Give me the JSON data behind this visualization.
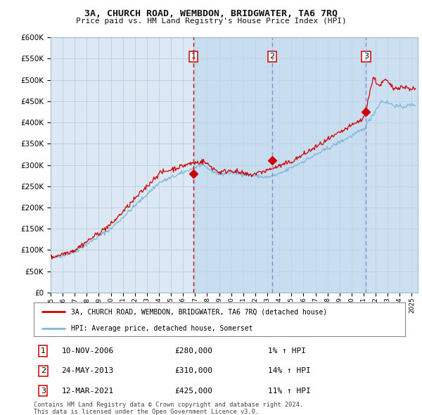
{
  "title": "3A, CHURCH ROAD, WEMBDON, BRIDGWATER, TA6 7RQ",
  "subtitle": "Price paid vs. HM Land Registry's House Price Index (HPI)",
  "hpi_label": "HPI: Average price, detached house, Somerset",
  "property_label": "3A, CHURCH ROAD, WEMBDON, BRIDGWATER, TA6 7RQ (detached house)",
  "footer1": "Contains HM Land Registry data © Crown copyright and database right 2024.",
  "footer2": "This data is licensed under the Open Government Licence v3.0.",
  "sales": [
    {
      "num": 1,
      "date": "10-NOV-2006",
      "price": 280000,
      "hpi_pct": "1%",
      "x_year": 2006.87
    },
    {
      "num": 2,
      "date": "24-MAY-2013",
      "price": 310000,
      "hpi_pct": "14%",
      "x_year": 2013.4
    },
    {
      "num": 3,
      "date": "12-MAR-2021",
      "price": 425000,
      "hpi_pct": "11%",
      "x_year": 2021.2
    }
  ],
  "ylim": [
    0,
    600000
  ],
  "yticks": [
    0,
    50000,
    100000,
    150000,
    200000,
    250000,
    300000,
    350000,
    400000,
    450000,
    500000,
    550000,
    600000
  ],
  "xlim_start": 1995.0,
  "xlim_end": 2025.5,
  "background_color": "#ffffff",
  "plot_bg_color": "#dce9f5",
  "grid_color": "#b8cfe0",
  "hpi_line_color": "#7db8d8",
  "price_line_color": "#cc0000",
  "sale_marker_color": "#cc0000",
  "vline1_color": "#cc0000",
  "vline23_color": "#8888cc",
  "sale_box_color": "#cc0000",
  "span_color": "#c0d8ee"
}
